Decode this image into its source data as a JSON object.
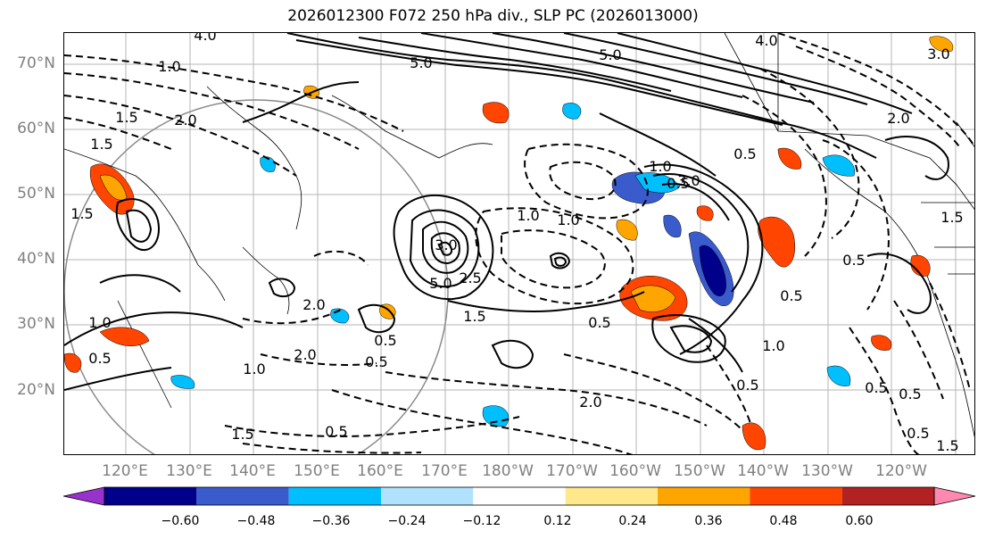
{
  "title": "2026012300 F072 250 hPa div., SLP PC (2026013000)",
  "latitude_labels": [
    "70°N",
    "60°N",
    "50°N",
    "40°N",
    "30°N",
    "20°N"
  ],
  "longitude_labels": [
    "120°E",
    "130°E",
    "140°E",
    "150°E",
    "160°E",
    "170°E",
    "180°W",
    "170°W",
    "160°W",
    "150°W",
    "140°W",
    "130°W",
    "120°W"
  ],
  "colorbar": {
    "ticks": [
      "−0.60",
      "−0.48",
      "−0.36",
      "−0.24",
      "−0.12",
      "0.12",
      "0.24",
      "0.36",
      "0.48",
      "0.60"
    ],
    "colors": [
      "#9932cc",
      "#00008b",
      "#3a5bcc",
      "#00bfff",
      "#b0e2ff",
      "#ffffff",
      "#ffe88c",
      "#ffa500",
      "#ff4500",
      "#b22222",
      "#ff88b0"
    ]
  },
  "contour_labels": {
    "negative": [
      "4.0",
      "1.0",
      "1.5",
      "2.0",
      "2.0",
      "1.0",
      "2.0",
      "0.5",
      "2.0",
      "0.5",
      "1.0",
      "3.0",
      "3.0",
      "2.0",
      "0.5",
      "1.5",
      "5.0",
      "5.0",
      "4.0",
      "0.5",
      "1.0",
      "0.5",
      "0.5"
    ],
    "positive": [
      "5.0",
      "3.0",
      "1.5",
      "1.0",
      "0.5",
      "0.5",
      "1.5",
      "1.5",
      "1.0",
      "0.5",
      "1.0",
      "0.5",
      "0.5",
      "0.5",
      "0.5",
      "2.5",
      "1.5",
      "1.5"
    ]
  },
  "colors": {
    "grid": "#b5b5b5",
    "coast": "#000000",
    "contour": "#000000",
    "axis_label": "#808080"
  }
}
